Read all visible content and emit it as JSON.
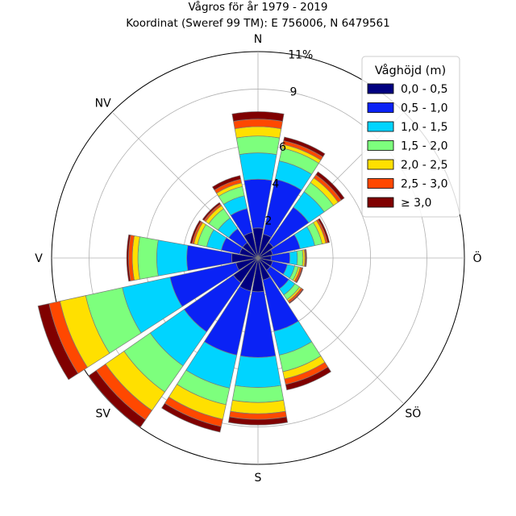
{
  "chart_data": {
    "type": "polar-stacked-bar",
    "title": "Vågros för år 1979 - 2019",
    "subtitle": "Koordinat (Sweref 99 TM): E 756006, N 6479561",
    "directions": [
      "N",
      "NNO",
      "NO",
      "ONO",
      "Ö",
      "OSO",
      "SÖ",
      "SSO",
      "S",
      "SSV",
      "SV",
      "VSV",
      "V",
      "VNV",
      "NV",
      "NNV"
    ],
    "direction_labels": [
      {
        "label": "N",
        "angle_deg": 0
      },
      {
        "label": "Ö",
        "angle_deg": 90
      },
      {
        "label": "SÖ",
        "angle_deg": 135
      },
      {
        "label": "S",
        "angle_deg": 180
      },
      {
        "label": "SV",
        "angle_deg": 225
      },
      {
        "label": "V",
        "angle_deg": 270
      },
      {
        "label": "NV",
        "angle_deg": 315
      }
    ],
    "radial_ticks": [
      "2",
      "4",
      "6",
      "9",
      "11%"
    ],
    "radial_tick_values": [
      2,
      4,
      6,
      9,
      11
    ],
    "rmax": 11,
    "grid": true,
    "legend_title": "Våghöjd (m)",
    "legend_position": "top-right",
    "series": [
      {
        "name": "0,0 - 0,5",
        "color": "#000080",
        "values": [
          1.6,
          1.3,
          1.0,
          0.8,
          0.7,
          0.8,
          0.8,
          1.2,
          1.8,
          1.8,
          1.6,
          1.2,
          1.4,
          1.0,
          1.0,
          1.4
        ]
      },
      {
        "name": "0,5 - 1,0",
        "color": "#0a22f5",
        "values": [
          2.6,
          3.0,
          2.3,
          1.5,
          1.0,
          0.8,
          1.2,
          2.8,
          3.5,
          3.5,
          3.2,
          3.6,
          2.4,
          1.0,
          0.9,
          1.3
        ]
      },
      {
        "name": "1,0 - 1,5",
        "color": "#00d4ff",
        "values": [
          1.4,
          1.0,
          1.0,
          0.8,
          0.4,
          0.4,
          0.4,
          1.3,
          1.6,
          1.8,
          2.2,
          2.6,
          1.6,
          0.8,
          0.7,
          0.7
        ]
      },
      {
        "name": "1,5 - 2,0",
        "color": "#7dff7d",
        "values": [
          0.9,
          0.7,
          0.6,
          0.4,
          0.3,
          0.2,
          0.3,
          0.9,
          0.8,
          0.9,
          1.7,
          2.0,
          1.0,
          0.5,
          0.6,
          0.5
        ]
      },
      {
        "name": "2,0 - 2,5",
        "color": "#ffe000",
        "values": [
          0.5,
          0.2,
          0.3,
          0.2,
          0.1,
          0.1,
          0.1,
          0.4,
          0.6,
          0.8,
          1.2,
          1.4,
          0.3,
          0.2,
          0.2,
          0.2
        ]
      },
      {
        "name": "2,5 - 3,0",
        "color": "#ff4800",
        "values": [
          0.4,
          0.2,
          0.2,
          0.1,
          0.05,
          0.1,
          0.1,
          0.3,
          0.3,
          0.4,
          0.6,
          0.6,
          0.2,
          0.1,
          0.1,
          0.2
        ]
      },
      {
        "name": "≥ 3,0",
        "color": "#800000",
        "values": [
          0.4,
          0.2,
          0.2,
          0.1,
          0.05,
          0.05,
          0.05,
          0.3,
          0.3,
          0.3,
          0.5,
          0.6,
          0.1,
          0.1,
          0.1,
          0.2
        ]
      }
    ]
  }
}
